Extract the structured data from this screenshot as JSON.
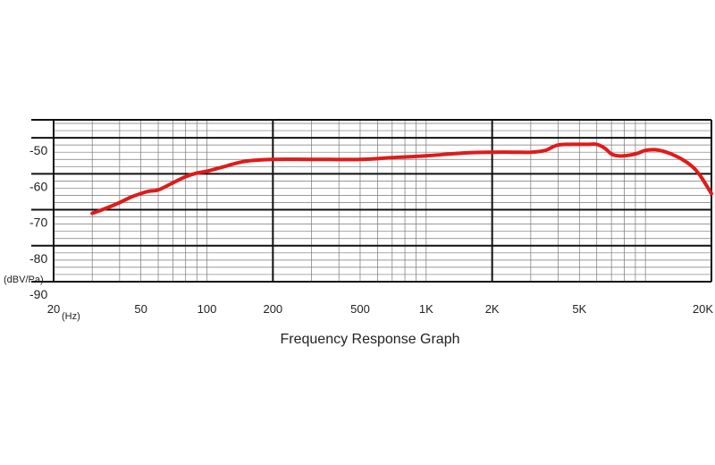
{
  "chart_data": {
    "type": "line",
    "title": "Frequency Response Graph",
    "x_scale": "log",
    "xlim": [
      20,
      20000
    ],
    "ylim": [
      -90,
      -45
    ],
    "y_unit_label": "(dBV/Pa)",
    "x_unit_label": "(Hz)",
    "y_ticks": [
      {
        "value": -50,
        "label": "-50"
      },
      {
        "value": -60,
        "label": "-60"
      },
      {
        "value": -70,
        "label": "-70"
      },
      {
        "value": -80,
        "label": "-80"
      },
      {
        "value": -90,
        "label": "-90"
      }
    ],
    "x_ticks": [
      {
        "value": 20,
        "label": "20"
      },
      {
        "value": 50,
        "label": "50"
      },
      {
        "value": 100,
        "label": "100"
      },
      {
        "value": 200,
        "label": "200"
      },
      {
        "value": 500,
        "label": "500"
      },
      {
        "value": 1000,
        "label": "1K"
      },
      {
        "value": 2000,
        "label": "2K"
      },
      {
        "value": 5000,
        "label": "5K"
      },
      {
        "value": 20000,
        "label": "20K"
      }
    ],
    "grid": true,
    "line_color": "#e01a1a",
    "series": [
      {
        "x": [
          30,
          35,
          40,
          45,
          50,
          55,
          60,
          70,
          80,
          90,
          100,
          120,
          150,
          200,
          300,
          500,
          700,
          1000,
          1500,
          2000,
          2500,
          3000,
          3500,
          4000,
          5000,
          5500,
          6000,
          6500,
          7000,
          7500,
          8000,
          9000,
          10000,
          11000,
          12000,
          13000,
          14000,
          15000,
          16000,
          17000,
          18000,
          20000
        ],
        "y": [
          -71,
          -69.5,
          -68,
          -66.5,
          -65.5,
          -64.8,
          -64.5,
          -62.5,
          -60.8,
          -59.8,
          -59.3,
          -58,
          -56.5,
          -56,
          -56,
          -56,
          -55.5,
          -55,
          -54.2,
          -54,
          -54,
          -54,
          -53.5,
          -52,
          -51.8,
          -51.8,
          -51.8,
          -52.8,
          -54.5,
          -55,
          -55,
          -54.5,
          -53.5,
          -53.3,
          -53.7,
          -54.4,
          -55.3,
          -56.3,
          -57.5,
          -59,
          -61,
          -65.5
        ]
      }
    ]
  }
}
